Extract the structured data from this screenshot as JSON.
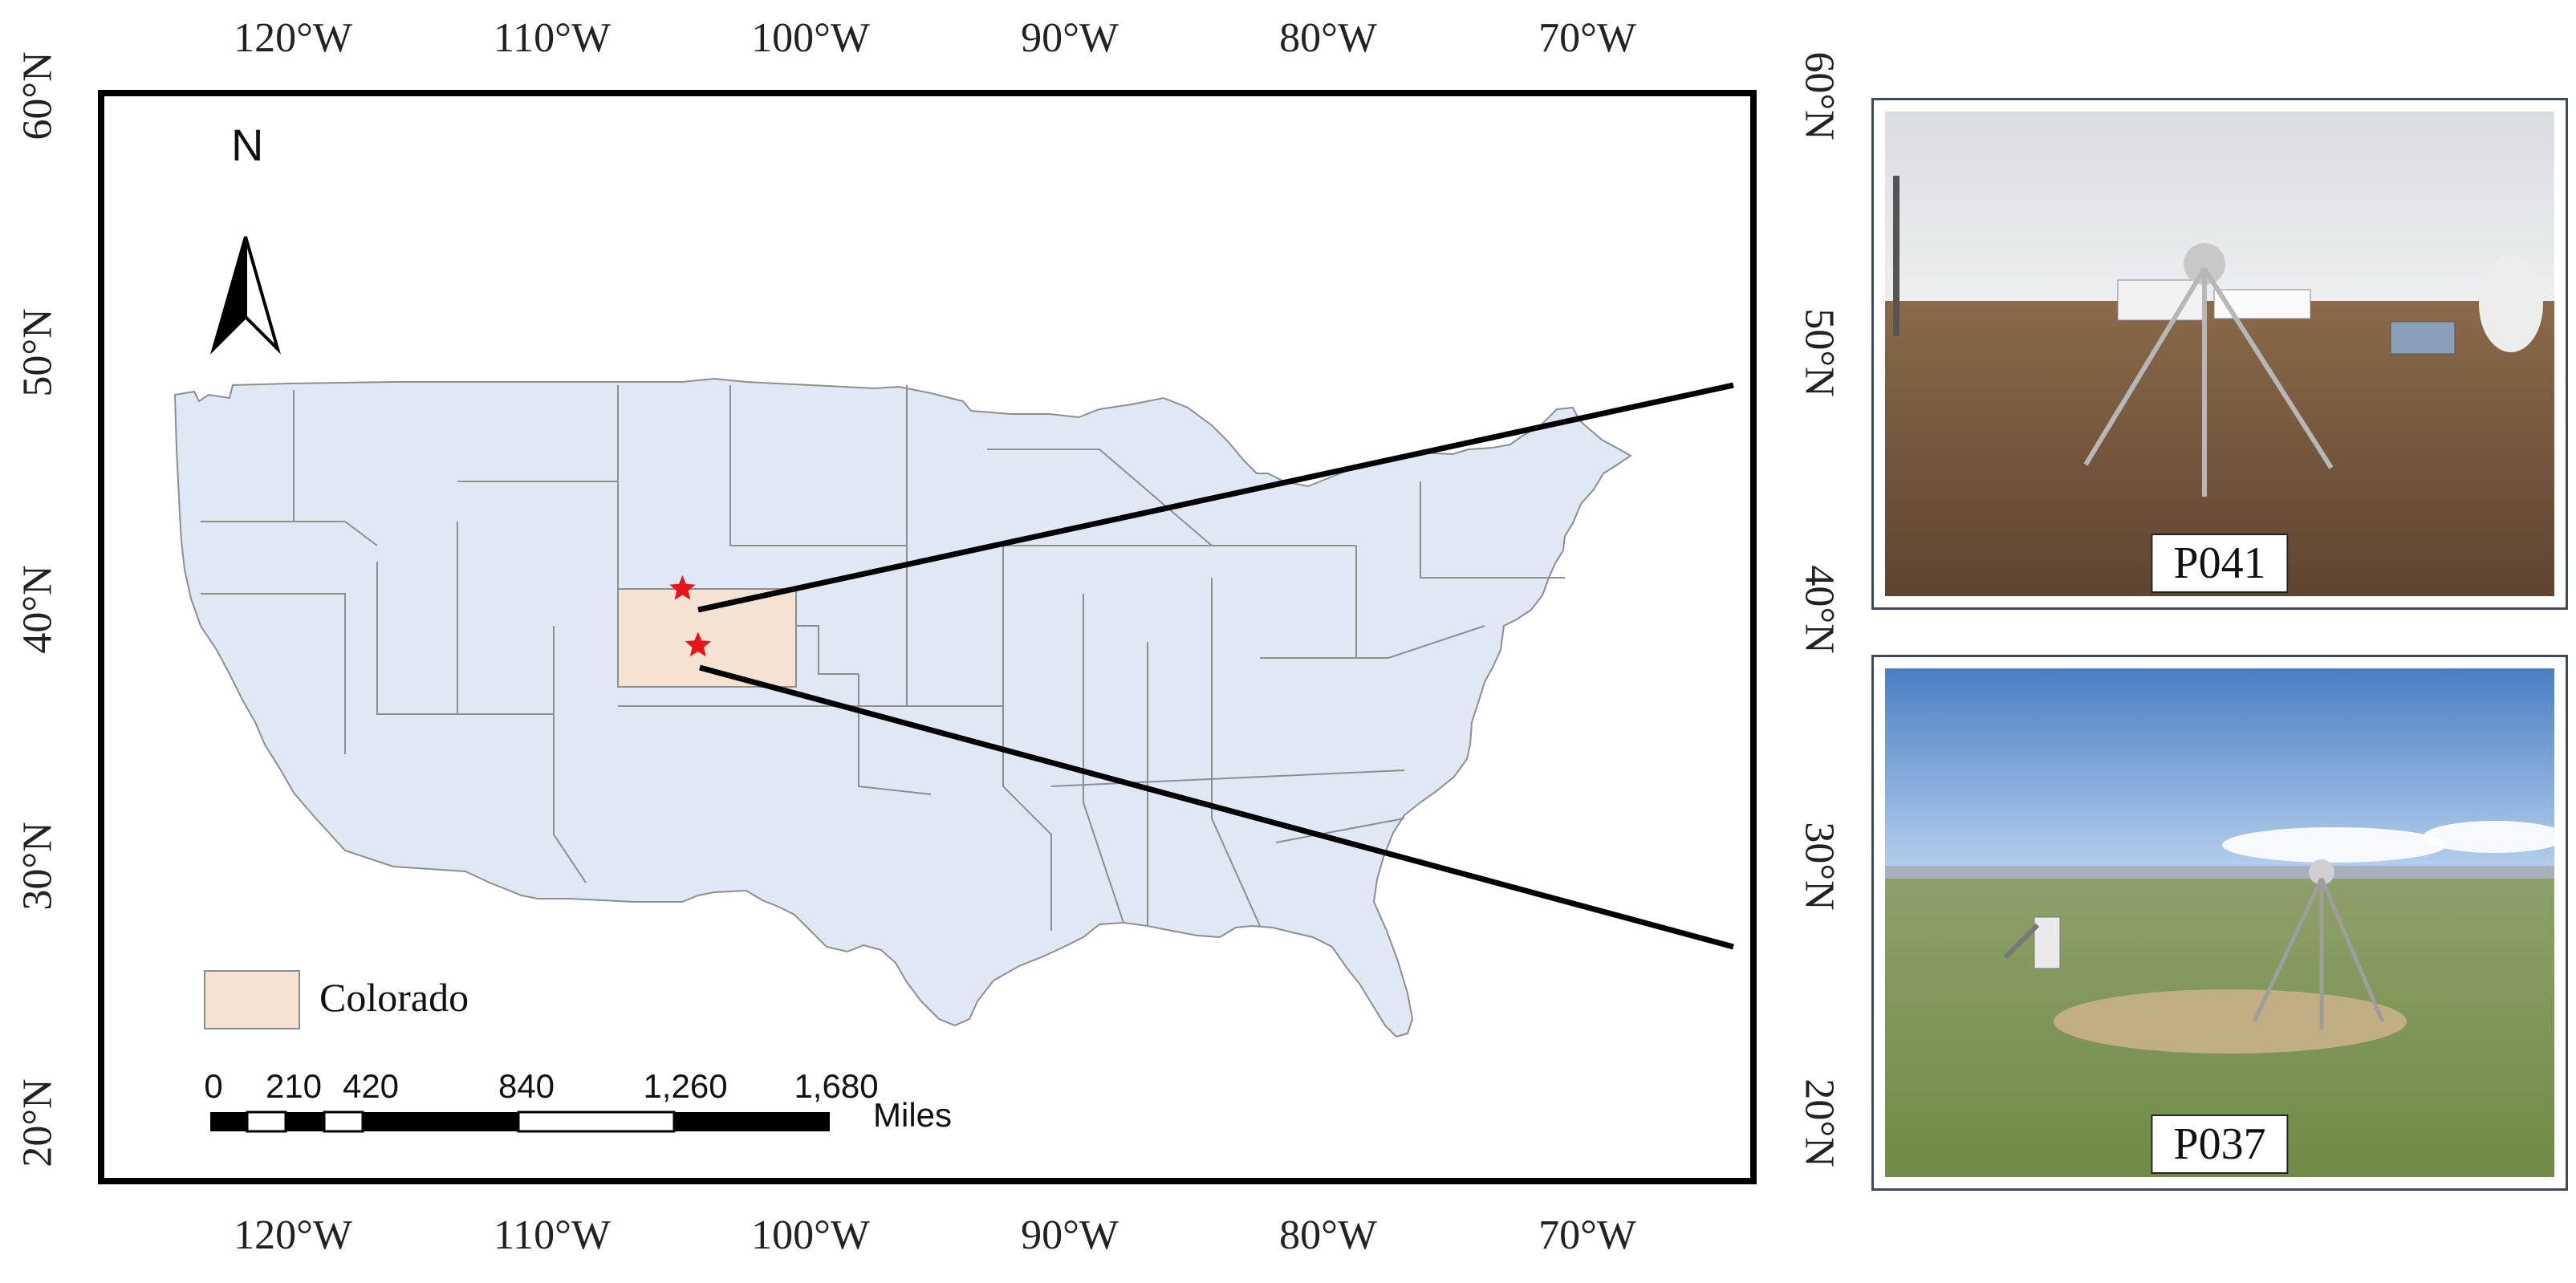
{
  "ticks": {
    "lon_labels": [
      "120°W",
      "110°W",
      "100°W",
      "90°W",
      "80°W",
      "70°W"
    ],
    "lat_labels": [
      "60°N",
      "50°N",
      "40°N",
      "30°N",
      "20°N"
    ]
  },
  "north_arrow": {
    "label": "N"
  },
  "legend": {
    "label": "Colorado",
    "color": "#f6e2d3"
  },
  "scalebar": {
    "labels": [
      "0",
      "210",
      "420",
      "840",
      "1,260",
      "1,680"
    ],
    "unit": "Miles"
  },
  "stations": [
    {
      "id": "P041",
      "lon": -105.2,
      "lat": 39.9
    },
    {
      "id": "P037",
      "lon": -104.6,
      "lat": 37.7
    }
  ],
  "colors": {
    "land": "#dfe8f4",
    "state_border": "#8e8e8e",
    "colorado": "#f6e2d3",
    "star": "#e8141c",
    "arrow": "#000000"
  },
  "photos": [
    {
      "label": "P041",
      "scene": "arid-field-station"
    },
    {
      "label": "P037",
      "scene": "grassland-station"
    }
  ]
}
